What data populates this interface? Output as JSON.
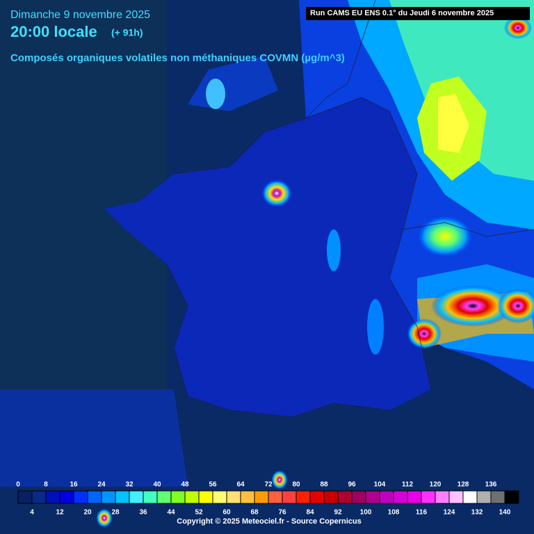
{
  "header": {
    "date": "Dimanche 9 novembre 2025",
    "time": "20:00 locale",
    "lead": "(+ 91h)",
    "variable": "Composés organiques volatiles non méthaniques COVMN (µg/m^3)"
  },
  "run_info": "Run CAMS EU ENS 0.1° du Jeudi 6 novembre 2025",
  "legend": {
    "labels": [
      0,
      4,
      8,
      12,
      16,
      20,
      24,
      28,
      32,
      36,
      40,
      44,
      48,
      52,
      56,
      60,
      64,
      68,
      72,
      76,
      80,
      84,
      88,
      92,
      96,
      100,
      104,
      108,
      112,
      116,
      120,
      124,
      128,
      132,
      136,
      140
    ],
    "colors": [
      "#0a2060",
      "#0a2a88",
      "#0010b8",
      "#0000e0",
      "#0030ff",
      "#0064ff",
      "#0094ff",
      "#00c4ff",
      "#40f0ff",
      "#40ffc0",
      "#60ff70",
      "#80ff20",
      "#c0ff00",
      "#ffff00",
      "#ffff70",
      "#ffe070",
      "#ffc040",
      "#ff9c00",
      "#ff6040",
      "#ff4040",
      "#ff2000",
      "#e80000",
      "#c80000",
      "#b00030",
      "#a00060",
      "#b00090",
      "#c000c0",
      "#d800d8",
      "#e800e8",
      "#ff30ff",
      "#ff80ff",
      "#ffc0ff",
      "#ffffff",
      "#b0b0b0",
      "#707070",
      "#000000"
    ]
  },
  "copyright": "Copyright © 2025 Meteociel.fr - Source Copernicus"
}
